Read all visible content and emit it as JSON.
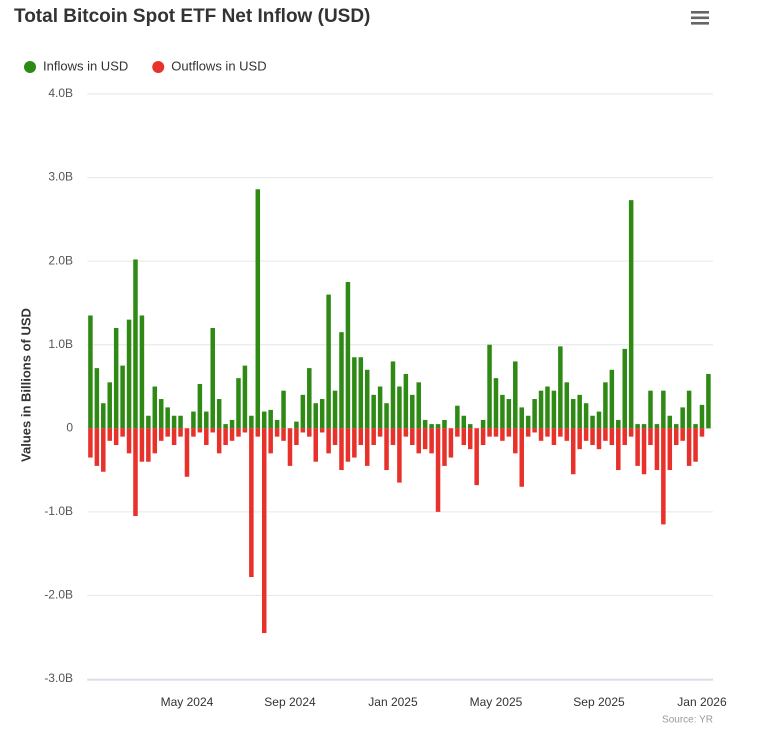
{
  "chart_data": {
    "type": "bar",
    "title": "Total Bitcoin Spot ETF Net Inflow (USD)",
    "y_label": "Values in Billions of USD",
    "source": "Source: YR",
    "legend": "top-left",
    "grid": true,
    "categories": [
      null,
      null,
      null,
      null,
      null,
      null,
      null,
      null,
      null,
      null,
      null,
      null,
      null,
      null,
      null,
      "May 2024",
      null,
      null,
      null,
      null,
      null,
      null,
      null,
      null,
      null,
      null,
      null,
      null,
      null,
      null,
      null,
      "Sep 2024",
      null,
      null,
      null,
      null,
      null,
      null,
      null,
      null,
      null,
      null,
      null,
      null,
      null,
      null,
      null,
      "Jan 2025",
      null,
      null,
      null,
      null,
      null,
      null,
      null,
      null,
      null,
      null,
      null,
      null,
      null,
      null,
      null,
      "May 2025",
      null,
      null,
      null,
      null,
      null,
      null,
      null,
      null,
      null,
      null,
      null,
      null,
      null,
      null,
      null,
      "Sep 2025",
      null,
      null,
      null,
      null,
      null,
      null,
      null,
      null,
      null,
      null,
      null,
      null,
      null,
      null,
      null,
      "Jan 2026",
      null
    ],
    "series": [
      {
        "name": "Inflows in USD",
        "color": "#2e8a14",
        "values": [
          1.35,
          0.72,
          0.3,
          0.55,
          1.2,
          0.75,
          1.3,
          2.02,
          1.35,
          0.15,
          0.5,
          0.35,
          0.25,
          0.15,
          0.15,
          0,
          0.2,
          0.53,
          0.2,
          1.2,
          0.35,
          0.05,
          0.1,
          0.6,
          0.75,
          0.15,
          2.86,
          0.2,
          0.22,
          0.1,
          0.45,
          0,
          0.08,
          0.4,
          0.72,
          0.3,
          0.35,
          1.6,
          0.45,
          1.15,
          1.75,
          0.85,
          0.85,
          0.7,
          0.4,
          0.5,
          0.3,
          0.8,
          0.5,
          0.65,
          0.4,
          0.55,
          0.1,
          0.05,
          0.05,
          0.1,
          0,
          0.27,
          0.15,
          0.05,
          0,
          0.1,
          1.0,
          0.6,
          0.4,
          0.35,
          0.8,
          0.25,
          0.15,
          0.35,
          0.45,
          0.5,
          0.45,
          0.98,
          0.55,
          0.35,
          0.4,
          0.3,
          0.15,
          0.2,
          0.55,
          0.7,
          0.1,
          0.95,
          2.73,
          0.05,
          0.05,
          0.45,
          0.05,
          0.45,
          0.15,
          0.05,
          0.25,
          0.45,
          0.05,
          0.28,
          0.65
        ]
      },
      {
        "name": "Outflows in USD",
        "color": "#e8312a",
        "values": [
          -0.35,
          -0.45,
          -0.52,
          -0.15,
          -0.2,
          -0.1,
          -0.3,
          -1.05,
          -0.4,
          -0.4,
          -0.3,
          -0.15,
          -0.1,
          -0.2,
          -0.1,
          -0.58,
          -0.1,
          -0.05,
          -0.2,
          -0.05,
          -0.3,
          -0.2,
          -0.15,
          -0.1,
          -0.05,
          -1.78,
          -0.1,
          -2.45,
          -0.3,
          -0.1,
          -0.15,
          -0.45,
          -0.2,
          -0.05,
          -0.1,
          -0.4,
          -0.05,
          -0.3,
          -0.2,
          -0.5,
          -0.4,
          -0.35,
          -0.2,
          -0.45,
          -0.2,
          -0.1,
          -0.5,
          -0.2,
          -0.65,
          -0.1,
          -0.2,
          -0.3,
          -0.25,
          -0.3,
          -1.0,
          -0.45,
          -0.35,
          -0.1,
          -0.2,
          -0.25,
          -0.68,
          -0.2,
          -0.1,
          -0.1,
          -0.15,
          -0.1,
          -0.3,
          -0.7,
          -0.1,
          -0.05,
          -0.15,
          -0.1,
          -0.2,
          -0.1,
          -0.15,
          -0.55,
          -0.25,
          -0.15,
          -0.2,
          -0.25,
          -0.15,
          -0.2,
          -0.5,
          -0.2,
          -0.1,
          -0.45,
          -0.55,
          -0.2,
          -0.5,
          -1.15,
          -0.5,
          -0.2,
          -0.15,
          -0.45,
          -0.4,
          -0.1,
          0
        ]
      }
    ],
    "ylim": [
      -3,
      4
    ],
    "yticks": [
      {
        "value": -3,
        "label": "-3.0B"
      },
      {
        "value": -2,
        "label": "-2.0B"
      },
      {
        "value": -1,
        "label": "-1.0B"
      },
      0,
      {
        "value": 1,
        "label": "1.0B"
      },
      {
        "value": 2,
        "label": "2.0B"
      },
      {
        "value": 3,
        "label": "3.0B"
      },
      {
        "value": 4,
        "label": "4.0B"
      }
    ]
  }
}
